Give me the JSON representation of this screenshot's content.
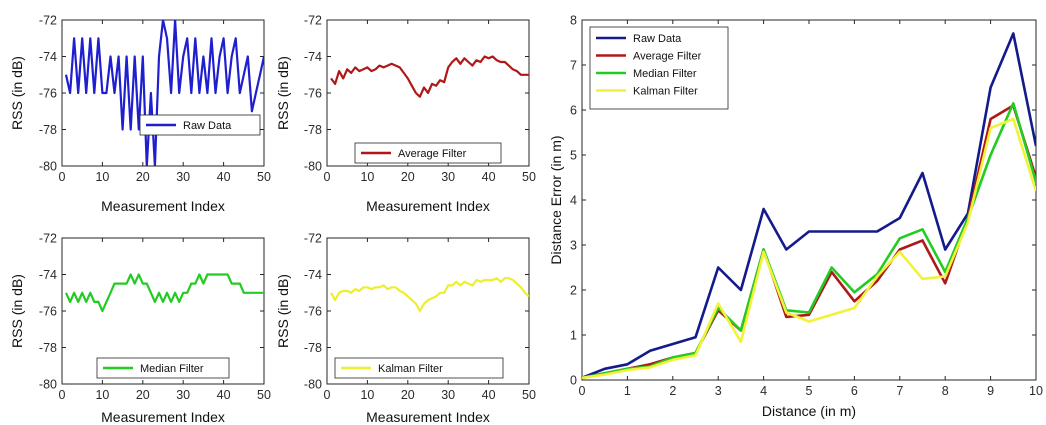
{
  "chart_data": [
    {
      "type": "line",
      "xlabel": "Measurement Index",
      "ylabel": "RSS (in dB)",
      "xlim": [
        0,
        50
      ],
      "ylim": [
        -80,
        -72
      ],
      "xticks": [
        "0",
        "10",
        "20",
        "30",
        "40",
        "50"
      ],
      "yticks": [
        "-72",
        "-74",
        "-76",
        "-78",
        "-80"
      ],
      "legend_position": "bottom-right",
      "series": [
        {
          "name": "Raw Data",
          "color": "#1f1fcf",
          "x": [
            1,
            2,
            3,
            4,
            5,
            6,
            7,
            8,
            9,
            10,
            11,
            12,
            13,
            14,
            15,
            16,
            17,
            18,
            19,
            20,
            21,
            22,
            23,
            24,
            25,
            26,
            27,
            28,
            29,
            30,
            31,
            32,
            33,
            34,
            35,
            36,
            37,
            38,
            39,
            40,
            41,
            42,
            43,
            44,
            45,
            46,
            47,
            48,
            49,
            50
          ],
          "values": [
            -75,
            -76,
            -73,
            -76,
            -73,
            -76,
            -73,
            -76,
            -73,
            -76,
            -76,
            -74,
            -76,
            -74,
            -78,
            -74,
            -78,
            -74,
            -78,
            -74,
            -80,
            -76,
            -80,
            -74,
            -72,
            -73,
            -76,
            -72,
            -76,
            -74,
            -73,
            -76,
            -73,
            -76,
            -74,
            -76,
            -73,
            -76,
            -74,
            -73,
            -76,
            -74,
            -73,
            -76,
            -75,
            -74,
            -77,
            -76,
            -75,
            -74
          ]
        }
      ]
    },
    {
      "type": "line",
      "xlabel": "Measurement Index",
      "ylabel": "RSS (in dB)",
      "xlim": [
        0,
        50
      ],
      "ylim": [
        -80,
        -72
      ],
      "xticks": [
        "0",
        "10",
        "20",
        "30",
        "40",
        "50"
      ],
      "yticks": [
        "-72",
        "-74",
        "-76",
        "-78",
        "-80"
      ],
      "legend_position": "bottom-right",
      "series": [
        {
          "name": "Average Filter",
          "color": "#b01818",
          "x": [
            1,
            2,
            3,
            4,
            5,
            6,
            7,
            8,
            9,
            10,
            11,
            12,
            13,
            14,
            15,
            16,
            17,
            18,
            19,
            20,
            21,
            22,
            23,
            24,
            25,
            26,
            27,
            28,
            29,
            30,
            31,
            32,
            33,
            34,
            35,
            36,
            37,
            38,
            39,
            40,
            41,
            42,
            43,
            44,
            45,
            46,
            47,
            48,
            49,
            50
          ],
          "values": [
            -75.2,
            -75.5,
            -74.8,
            -75.2,
            -74.7,
            -74.9,
            -74.6,
            -74.8,
            -74.7,
            -74.6,
            -74.8,
            -74.7,
            -74.5,
            -74.6,
            -74.5,
            -74.4,
            -74.5,
            -74.6,
            -74.9,
            -75.2,
            -75.6,
            -76.0,
            -76.2,
            -75.7,
            -76.0,
            -75.5,
            -75.6,
            -75.3,
            -75.4,
            -74.6,
            -74.3,
            -74.1,
            -74.4,
            -74.1,
            -74.3,
            -74.5,
            -74.2,
            -74.3,
            -74.0,
            -74.1,
            -74.0,
            -74.2,
            -74.3,
            -74.3,
            -74.5,
            -74.7,
            -74.8,
            -75.0,
            -75.0,
            -75.0
          ]
        }
      ]
    },
    {
      "type": "line",
      "xlabel": "Measurement Index",
      "ylabel": "RSS (in dB)",
      "xlim": [
        0,
        50
      ],
      "ylim": [
        -80,
        -72
      ],
      "xticks": [
        "0",
        "10",
        "20",
        "30",
        "40",
        "50"
      ],
      "yticks": [
        "-72",
        "-74",
        "-76",
        "-78",
        "-80"
      ],
      "legend_position": "bottom-right",
      "series": [
        {
          "name": "Median Filter",
          "color": "#22cc22",
          "x": [
            1,
            2,
            3,
            4,
            5,
            6,
            7,
            8,
            9,
            10,
            11,
            12,
            13,
            14,
            15,
            16,
            17,
            18,
            19,
            20,
            21,
            22,
            23,
            24,
            25,
            26,
            27,
            28,
            29,
            30,
            31,
            32,
            33,
            34,
            35,
            36,
            37,
            38,
            39,
            40,
            41,
            42,
            43,
            44,
            45,
            46,
            47,
            48,
            49,
            50
          ],
          "values": [
            -75,
            -75.5,
            -75,
            -75.5,
            -75,
            -75.5,
            -75,
            -75.5,
            -75.5,
            -76,
            -75.5,
            -75,
            -74.5,
            -74.5,
            -74.5,
            -74.5,
            -74,
            -74.5,
            -74,
            -74.5,
            -74.5,
            -75,
            -75.5,
            -75,
            -75.5,
            -75,
            -75.5,
            -75,
            -75.5,
            -75,
            -75,
            -74.5,
            -74.5,
            -74,
            -74.5,
            -74,
            -74,
            -74,
            -74,
            -74,
            -74,
            -74.5,
            -74.5,
            -74.5,
            -75,
            -75,
            -75,
            -75,
            -75,
            -75
          ]
        }
      ]
    },
    {
      "type": "line",
      "xlabel": "Measurement Index",
      "ylabel": "RSS (in dB)",
      "xlim": [
        0,
        50
      ],
      "ylim": [
        -80,
        -72
      ],
      "xticks": [
        "0",
        "10",
        "20",
        "30",
        "40",
        "50"
      ],
      "yticks": [
        "-72",
        "-74",
        "-76",
        "-78",
        "-80"
      ],
      "legend_position": "bottom-right",
      "series": [
        {
          "name": "Kalman Filter",
          "color": "#eeee30",
          "x": [
            1,
            2,
            3,
            4,
            5,
            6,
            7,
            8,
            9,
            10,
            11,
            12,
            13,
            14,
            15,
            16,
            17,
            18,
            19,
            20,
            21,
            22,
            23,
            24,
            25,
            26,
            27,
            28,
            29,
            30,
            31,
            32,
            33,
            34,
            35,
            36,
            37,
            38,
            39,
            40,
            41,
            42,
            43,
            44,
            45,
            46,
            47,
            48,
            49,
            50
          ],
          "values": [
            -75.0,
            -75.4,
            -75.0,
            -74.9,
            -74.9,
            -75.0,
            -74.8,
            -74.9,
            -74.7,
            -74.7,
            -74.8,
            -74.7,
            -74.7,
            -74.6,
            -74.8,
            -74.7,
            -74.7,
            -74.9,
            -75.0,
            -75.2,
            -75.4,
            -75.6,
            -76.0,
            -75.6,
            -75.4,
            -75.3,
            -75.2,
            -75.0,
            -75.0,
            -74.6,
            -74.6,
            -74.4,
            -74.6,
            -74.4,
            -74.5,
            -74.6,
            -74.3,
            -74.4,
            -74.3,
            -74.3,
            -74.3,
            -74.2,
            -74.4,
            -74.2,
            -74.2,
            -74.3,
            -74.5,
            -74.7,
            -75.0,
            -75.2
          ]
        }
      ]
    },
    {
      "type": "line",
      "xlabel": "Distance (in m)",
      "ylabel": "Distance Error (in m)",
      "xlim": [
        0,
        10
      ],
      "ylim": [
        0,
        8
      ],
      "xticks": [
        "0",
        "1",
        "2",
        "3",
        "4",
        "5",
        "6",
        "7",
        "8",
        "9",
        "10"
      ],
      "yticks": [
        "0",
        "1",
        "2",
        "3",
        "4",
        "5",
        "6",
        "7",
        "8"
      ],
      "legend_position": "top-left",
      "x": [
        0.0,
        0.5,
        1.0,
        1.5,
        2.0,
        2.5,
        3.0,
        3.5,
        4.0,
        4.5,
        5.0,
        5.5,
        6.0,
        6.5,
        7.0,
        7.5,
        8.0,
        8.5,
        9.0,
        9.5,
        10.0
      ],
      "series": [
        {
          "name": "Raw Data",
          "color": "#141a8c",
          "values": [
            0.05,
            0.25,
            0.35,
            0.65,
            0.8,
            0.95,
            2.5,
            2.0,
            3.8,
            2.9,
            3.3,
            3.3,
            3.3,
            3.3,
            3.6,
            4.6,
            2.9,
            3.7,
            6.5,
            7.7,
            5.2
          ]
        },
        {
          "name": "Average Filter",
          "color": "#b01818",
          "values": [
            0.05,
            0.15,
            0.25,
            0.35,
            0.5,
            0.6,
            1.55,
            1.1,
            2.9,
            1.4,
            1.45,
            2.4,
            1.75,
            2.2,
            2.9,
            3.1,
            2.15,
            3.6,
            5.8,
            6.1,
            4.5
          ]
        },
        {
          "name": "Median Filter",
          "color": "#22cc22",
          "values": [
            0.05,
            0.15,
            0.25,
            0.3,
            0.5,
            0.6,
            1.6,
            1.1,
            2.9,
            1.55,
            1.5,
            2.5,
            1.95,
            2.35,
            3.15,
            3.35,
            2.4,
            3.6,
            5.0,
            6.15,
            4.4
          ]
        },
        {
          "name": "Kalman Filter",
          "color": "#f2f23a",
          "values": [
            0.05,
            0.12,
            0.22,
            0.28,
            0.45,
            0.55,
            1.7,
            0.85,
            2.85,
            1.5,
            1.3,
            1.45,
            1.6,
            2.3,
            2.85,
            2.25,
            2.3,
            3.5,
            5.6,
            5.8,
            4.2
          ]
        }
      ]
    }
  ]
}
